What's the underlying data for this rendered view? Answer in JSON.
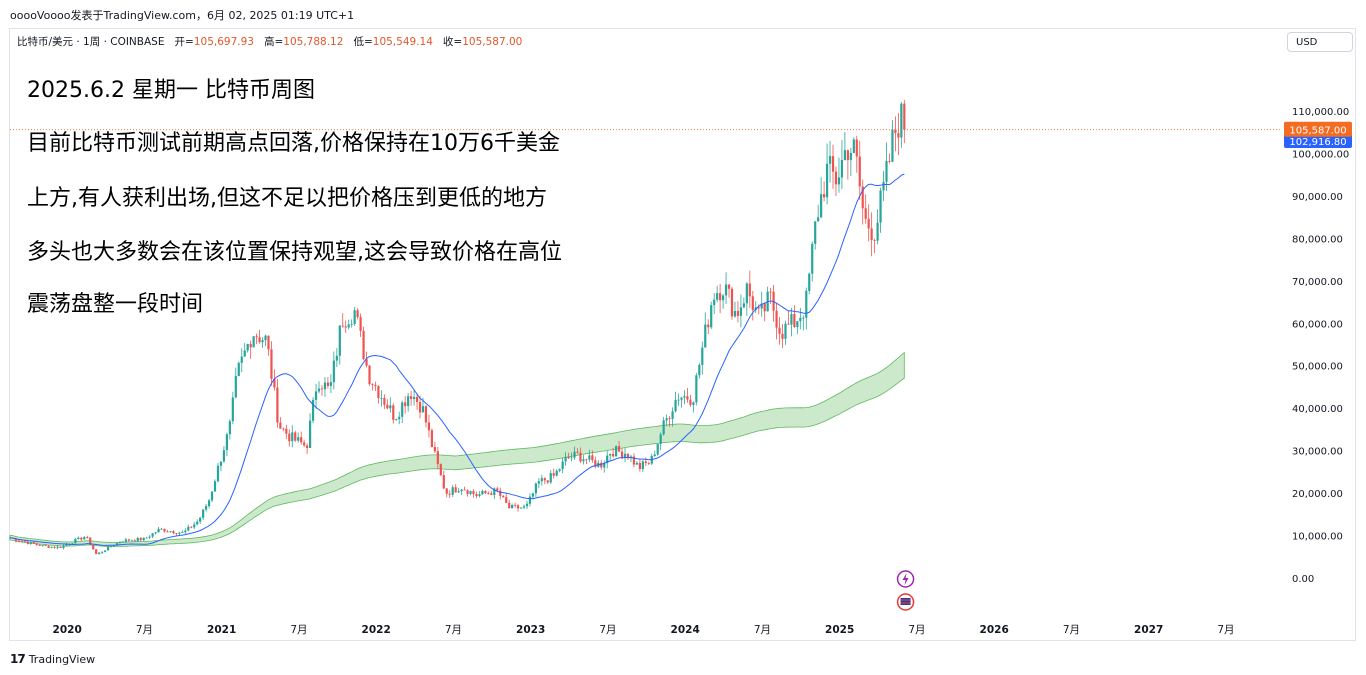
{
  "header": {
    "author_line": "ooooVoooo发表于TradingView.com，6月 02, 2025 01:19 UTC+1"
  },
  "legend": {
    "symbol": "比特币/美元 · 1周 · COINBASE",
    "open_label": "开=",
    "open": "105,697.93",
    "high_label": "高=",
    "high": "105,788.12",
    "low_label": "低=",
    "low": "105,549.14",
    "close_label": "收=",
    "close": "105,587.00"
  },
  "currency_button": "USD",
  "annotation": {
    "title": "2025.6.2 星期一 比特币周图",
    "line1": "目前比特币测试前期高点回落,价格保持在10万6千美金",
    "line2": "上方,有人获利出场,但这不足以把价格压到更低的地方",
    "line3": "多头也大多数会在该位置保持观望,这会导致价格在高位",
    "line4": "震荡盘整一段时间"
  },
  "footer": {
    "brand": "TradingView"
  },
  "colors": {
    "up": "#26a69a",
    "down": "#ef5350",
    "ma": "#2962ff",
    "band": "#8fcf8f",
    "price_label": "#f36c21",
    "ma_label": "#2962ff"
  },
  "chart_data": {
    "type": "candlestick",
    "y_ticks": [
      0,
      10000,
      20000,
      30000,
      40000,
      50000,
      60000,
      70000,
      80000,
      90000,
      100000,
      110000
    ],
    "y_tick_labels": [
      "0.00",
      "10,000.00",
      "20,000.00",
      "30,000.00",
      "40,000.00",
      "50,000.00",
      "60,000.00",
      "70,000.00",
      "80,000.00",
      "90,000.00",
      "100,000.00",
      "110,000.00"
    ],
    "ylim": [
      -8000,
      122000
    ],
    "x_ticks": [
      {
        "t": 2020.0,
        "label": "2020",
        "major": true
      },
      {
        "t": 2020.5,
        "label": "7月",
        "major": false
      },
      {
        "t": 2021.0,
        "label": "2021",
        "major": true
      },
      {
        "t": 2021.5,
        "label": "7月",
        "major": false
      },
      {
        "t": 2022.0,
        "label": "2022",
        "major": true
      },
      {
        "t": 2022.5,
        "label": "7月",
        "major": false
      },
      {
        "t": 2023.0,
        "label": "2023",
        "major": true
      },
      {
        "t": 2023.5,
        "label": "7月",
        "major": false
      },
      {
        "t": 2024.0,
        "label": "2024",
        "major": true
      },
      {
        "t": 2024.5,
        "label": "7月",
        "major": false
      },
      {
        "t": 2025.0,
        "label": "2025",
        "major": true
      },
      {
        "t": 2025.5,
        "label": "7月",
        "major": false
      },
      {
        "t": 2026.0,
        "label": "2026",
        "major": true
      },
      {
        "t": 2026.5,
        "label": "7月",
        "major": false
      },
      {
        "t": 2027.0,
        "label": "2027",
        "major": true
      },
      {
        "t": 2027.5,
        "label": "7月",
        "major": false
      }
    ],
    "xlim": [
      2019.63,
      2027.85
    ],
    "price_anchors": [
      [
        2019.63,
        9500
      ],
      [
        2019.75,
        8300
      ],
      [
        2019.85,
        7500
      ],
      [
        2019.95,
        7200
      ],
      [
        2020.05,
        8800
      ],
      [
        2020.12,
        9800
      ],
      [
        2020.19,
        5500
      ],
      [
        2020.25,
        6800
      ],
      [
        2020.35,
        8800
      ],
      [
        2020.5,
        9200
      ],
      [
        2020.6,
        11500
      ],
      [
        2020.75,
        10600
      ],
      [
        2020.85,
        13500
      ],
      [
        2020.92,
        18500
      ],
      [
        2021.0,
        29000
      ],
      [
        2021.05,
        35000
      ],
      [
        2021.1,
        48000
      ],
      [
        2021.2,
        58000
      ],
      [
        2021.29,
        56000
      ],
      [
        2021.37,
        36000
      ],
      [
        2021.45,
        33000
      ],
      [
        2021.55,
        31000
      ],
      [
        2021.62,
        47000
      ],
      [
        2021.7,
        44000
      ],
      [
        2021.78,
        61000
      ],
      [
        2021.86,
        63000
      ],
      [
        2021.95,
        48000
      ],
      [
        2022.05,
        42000
      ],
      [
        2022.12,
        38000
      ],
      [
        2022.22,
        44000
      ],
      [
        2022.3,
        40000
      ],
      [
        2022.37,
        30000
      ],
      [
        2022.45,
        20000
      ],
      [
        2022.55,
        21500
      ],
      [
        2022.65,
        19500
      ],
      [
        2022.78,
        20500
      ],
      [
        2022.86,
        16500
      ],
      [
        2022.97,
        16600
      ],
      [
        2023.05,
        22500
      ],
      [
        2023.15,
        24000
      ],
      [
        2023.23,
        28000
      ],
      [
        2023.3,
        29000
      ],
      [
        2023.45,
        26500
      ],
      [
        2023.52,
        30000
      ],
      [
        2023.62,
        29500
      ],
      [
        2023.7,
        26000
      ],
      [
        2023.78,
        27500
      ],
      [
        2023.85,
        35000
      ],
      [
        2023.95,
        43000
      ],
      [
        2024.05,
        42500
      ],
      [
        2024.1,
        52000
      ],
      [
        2024.18,
        67000
      ],
      [
        2024.25,
        69000
      ],
      [
        2024.33,
        62000
      ],
      [
        2024.4,
        68000
      ],
      [
        2024.48,
        61000
      ],
      [
        2024.55,
        66000
      ],
      [
        2024.62,
        58000
      ],
      [
        2024.7,
        60000
      ],
      [
        2024.78,
        64000
      ],
      [
        2024.85,
        85000
      ],
      [
        2024.92,
        96000
      ],
      [
        2024.98,
        94000
      ],
      [
        2025.05,
        102000
      ],
      [
        2025.1,
        100000
      ],
      [
        2025.16,
        84000
      ],
      [
        2025.23,
        82000
      ],
      [
        2025.3,
        94000
      ],
      [
        2025.35,
        104000
      ],
      [
        2025.39,
        109000
      ],
      [
        2025.42,
        105587
      ]
    ],
    "last_price": 105587.0,
    "last_price_label": "105,587.00",
    "ma_value": 102916.8,
    "ma_value_label": "102,916.80",
    "markers": [
      "flash-icon",
      "flag-icon"
    ]
  }
}
